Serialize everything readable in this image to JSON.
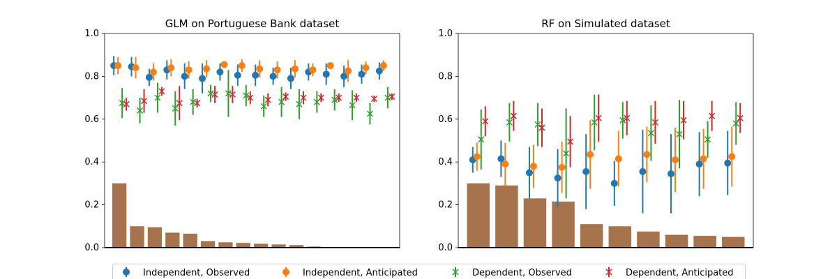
{
  "colors": {
    "independent_observed": "#1f77b4",
    "independent_anticipated": "#ff7f0e",
    "dependent_observed": "#2ca02c",
    "dependent_anticipated": "#d62728",
    "bars": "#a6734d"
  },
  "legend": {
    "entries": [
      {
        "key": "independent_observed",
        "label": "Independent, Observed",
        "marker": "circle"
      },
      {
        "key": "independent_anticipated",
        "label": "Independent, Anticipated",
        "marker": "circle"
      },
      {
        "key": "dependent_observed",
        "label": "Dependent, Observed",
        "marker": "x"
      },
      {
        "key": "dependent_anticipated",
        "label": "Dependent, Anticipated",
        "marker": "x"
      }
    ]
  },
  "chart_data": [
    {
      "type": "bar+errorbar",
      "title": "GLM on Portuguese Bank dataset",
      "ylim": [
        0,
        1
      ],
      "yticks": [
        "0.0",
        "0.2",
        "0.4",
        "0.6",
        "0.8",
        "1.0"
      ],
      "bars": [
        0.3,
        0.1,
        0.095,
        0.07,
        0.065,
        0.03,
        0.025,
        0.022,
        0.018,
        0.015,
        0.012,
        0.005,
        0.0,
        0.0,
        0.0,
        0.0
      ],
      "series": [
        {
          "key": "independent_observed",
          "values": [
            0.85,
            0.845,
            0.795,
            0.83,
            0.8,
            0.79,
            0.82,
            0.805,
            0.805,
            0.8,
            0.79,
            0.82,
            0.81,
            0.8,
            0.81,
            0.825
          ],
          "errors": [
            0.045,
            0.045,
            0.04,
            0.045,
            0.06,
            0.07,
            0.04,
            0.05,
            0.05,
            0.04,
            0.05,
            0.04,
            0.05,
            0.05,
            0.045,
            0.04
          ]
        },
        {
          "key": "independent_anticipated",
          "values": [
            0.85,
            0.84,
            0.82,
            0.84,
            0.83,
            0.835,
            0.855,
            0.85,
            0.835,
            0.83,
            0.835,
            0.83,
            0.85,
            0.825,
            0.84,
            0.85
          ],
          "errors": [
            0.04,
            0.05,
            0.04,
            0.04,
            0.04,
            0.04,
            0.015,
            0.03,
            0.04,
            0.04,
            0.04,
            0.03,
            0.015,
            0.05,
            0.03,
            0.025
          ]
        },
        {
          "key": "dependent_observed",
          "values": [
            0.675,
            0.64,
            0.7,
            0.65,
            0.68,
            0.72,
            0.72,
            0.71,
            0.66,
            0.68,
            0.67,
            0.68,
            0.69,
            0.665,
            0.625,
            0.7
          ],
          "errors": [
            0.07,
            0.06,
            0.07,
            0.08,
            0.06,
            0.04,
            0.11,
            0.05,
            0.05,
            0.07,
            0.07,
            0.05,
            0.05,
            0.07,
            0.05,
            0.05
          ]
        },
        {
          "key": "dependent_anticipated",
          "values": [
            0.67,
            0.685,
            0.73,
            0.675,
            0.675,
            0.715,
            0.715,
            0.7,
            0.69,
            0.705,
            0.7,
            0.7,
            0.7,
            0.7,
            0.695,
            0.705
          ],
          "errors": [
            0.03,
            0.055,
            0.02,
            0.08,
            0.02,
            0.04,
            0.04,
            0.03,
            0.03,
            0.02,
            0.03,
            0.02,
            0.02,
            0.02,
            0.015,
            0.015
          ]
        }
      ]
    },
    {
      "type": "bar+errorbar",
      "title": "RF on Simulated dataset",
      "ylim": [
        0,
        1
      ],
      "yticks": [
        "0.0",
        "0.2",
        "0.4",
        "0.6",
        "0.8",
        "1.0"
      ],
      "bars": [
        0.3,
        0.29,
        0.23,
        0.215,
        0.11,
        0.1,
        0.075,
        0.06,
        0.055,
        0.05
      ],
      "series": [
        {
          "key": "independent_observed",
          "values": [
            0.41,
            0.415,
            0.35,
            0.325,
            0.355,
            0.3,
            0.355,
            0.345,
            0.39,
            0.395
          ],
          "errors": [
            0.06,
            0.085,
            0.12,
            0.135,
            0.175,
            0.105,
            0.195,
            0.185,
            0.15,
            0.15
          ]
        },
        {
          "key": "independent_anticipated",
          "values": [
            0.425,
            0.39,
            0.38,
            0.375,
            0.435,
            0.415,
            0.435,
            0.41,
            0.415,
            0.425
          ],
          "errors": [
            0.065,
            0.1,
            0.1,
            0.12,
            0.16,
            0.13,
            0.13,
            0.15,
            0.14,
            0.14
          ]
        },
        {
          "key": "dependent_observed",
          "values": [
            0.505,
            0.585,
            0.575,
            0.44,
            0.585,
            0.595,
            0.535,
            0.53,
            0.505,
            0.58
          ],
          "errors": [
            0.14,
            0.09,
            0.1,
            0.21,
            0.13,
            0.085,
            0.13,
            0.16,
            0.085,
            0.1
          ]
        },
        {
          "key": "dependent_anticipated",
          "values": [
            0.59,
            0.615,
            0.56,
            0.495,
            0.605,
            0.605,
            0.585,
            0.595,
            0.615,
            0.605
          ],
          "errors": [
            0.07,
            0.07,
            0.09,
            0.12,
            0.11,
            0.08,
            0.1,
            0.09,
            0.07,
            0.07
          ]
        }
      ]
    }
  ]
}
